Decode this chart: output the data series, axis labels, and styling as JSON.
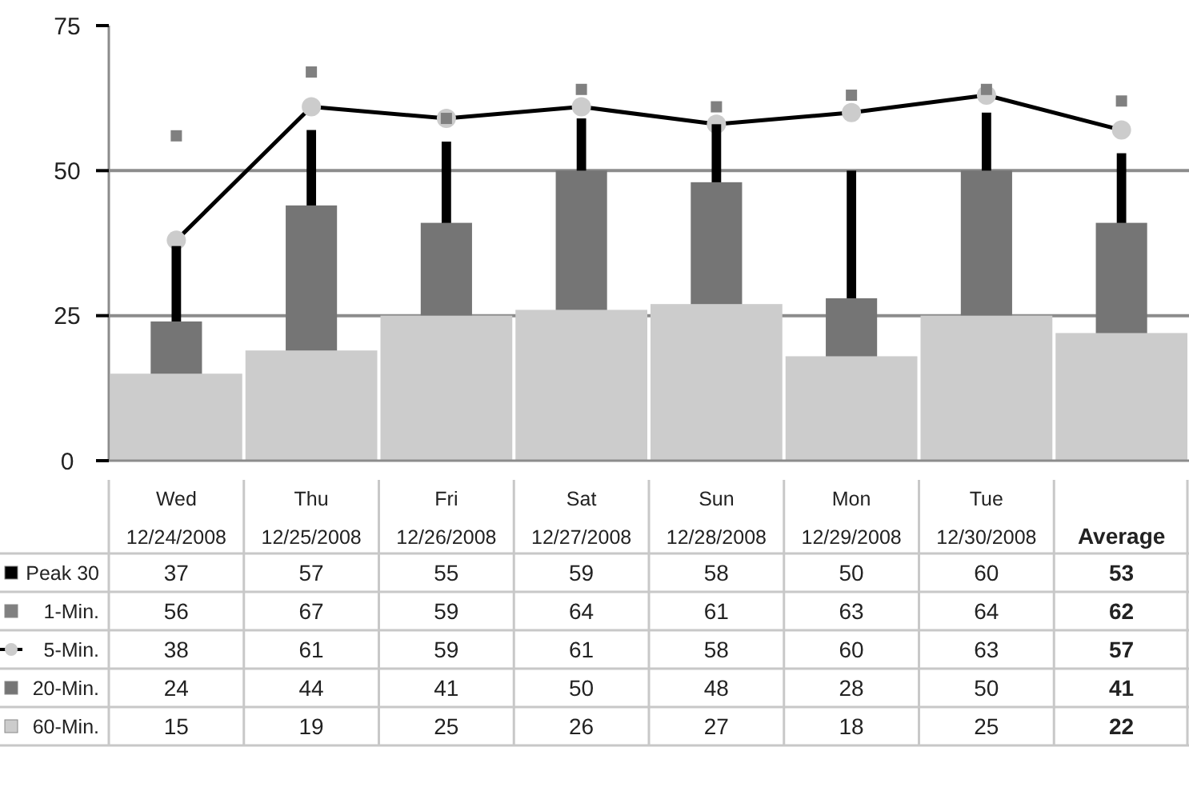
{
  "chart_data": {
    "type": "bar",
    "categories": [
      "Wed\n12/24/2008",
      "Thu\n12/25/2008",
      "Fri\n12/26/2008",
      "Sat\n12/27/2008",
      "Sun\n12/28/2008",
      "Mon\n12/29/2008",
      "Tue\n12/30/2008",
      "Average"
    ],
    "series": [
      {
        "name": "Peak 30",
        "color": "#000000",
        "values": [
          37,
          57,
          55,
          59,
          58,
          50,
          60,
          53
        ]
      },
      {
        "name": "1-Min.",
        "type": "scatter",
        "color": "#808080",
        "values": [
          56,
          67,
          59,
          64,
          61,
          63,
          64,
          62
        ]
      },
      {
        "name": "5-Min.",
        "type": "line",
        "color": "#000000",
        "marker": "circle",
        "values": [
          38,
          61,
          59,
          61,
          58,
          60,
          63,
          57
        ]
      },
      {
        "name": "20-Min.",
        "color": "#757575",
        "values": [
          24,
          44,
          41,
          50,
          48,
          28,
          50,
          41
        ]
      },
      {
        "name": "60-Min.",
        "color": "#cccccc",
        "values": [
          15,
          19,
          25,
          26,
          27,
          18,
          25,
          22
        ]
      }
    ],
    "ylim": [
      0,
      75
    ],
    "yticks": [
      0,
      25,
      50,
      75
    ],
    "grid": "y",
    "data_labels": true,
    "legend": "bottom left"
  }
}
